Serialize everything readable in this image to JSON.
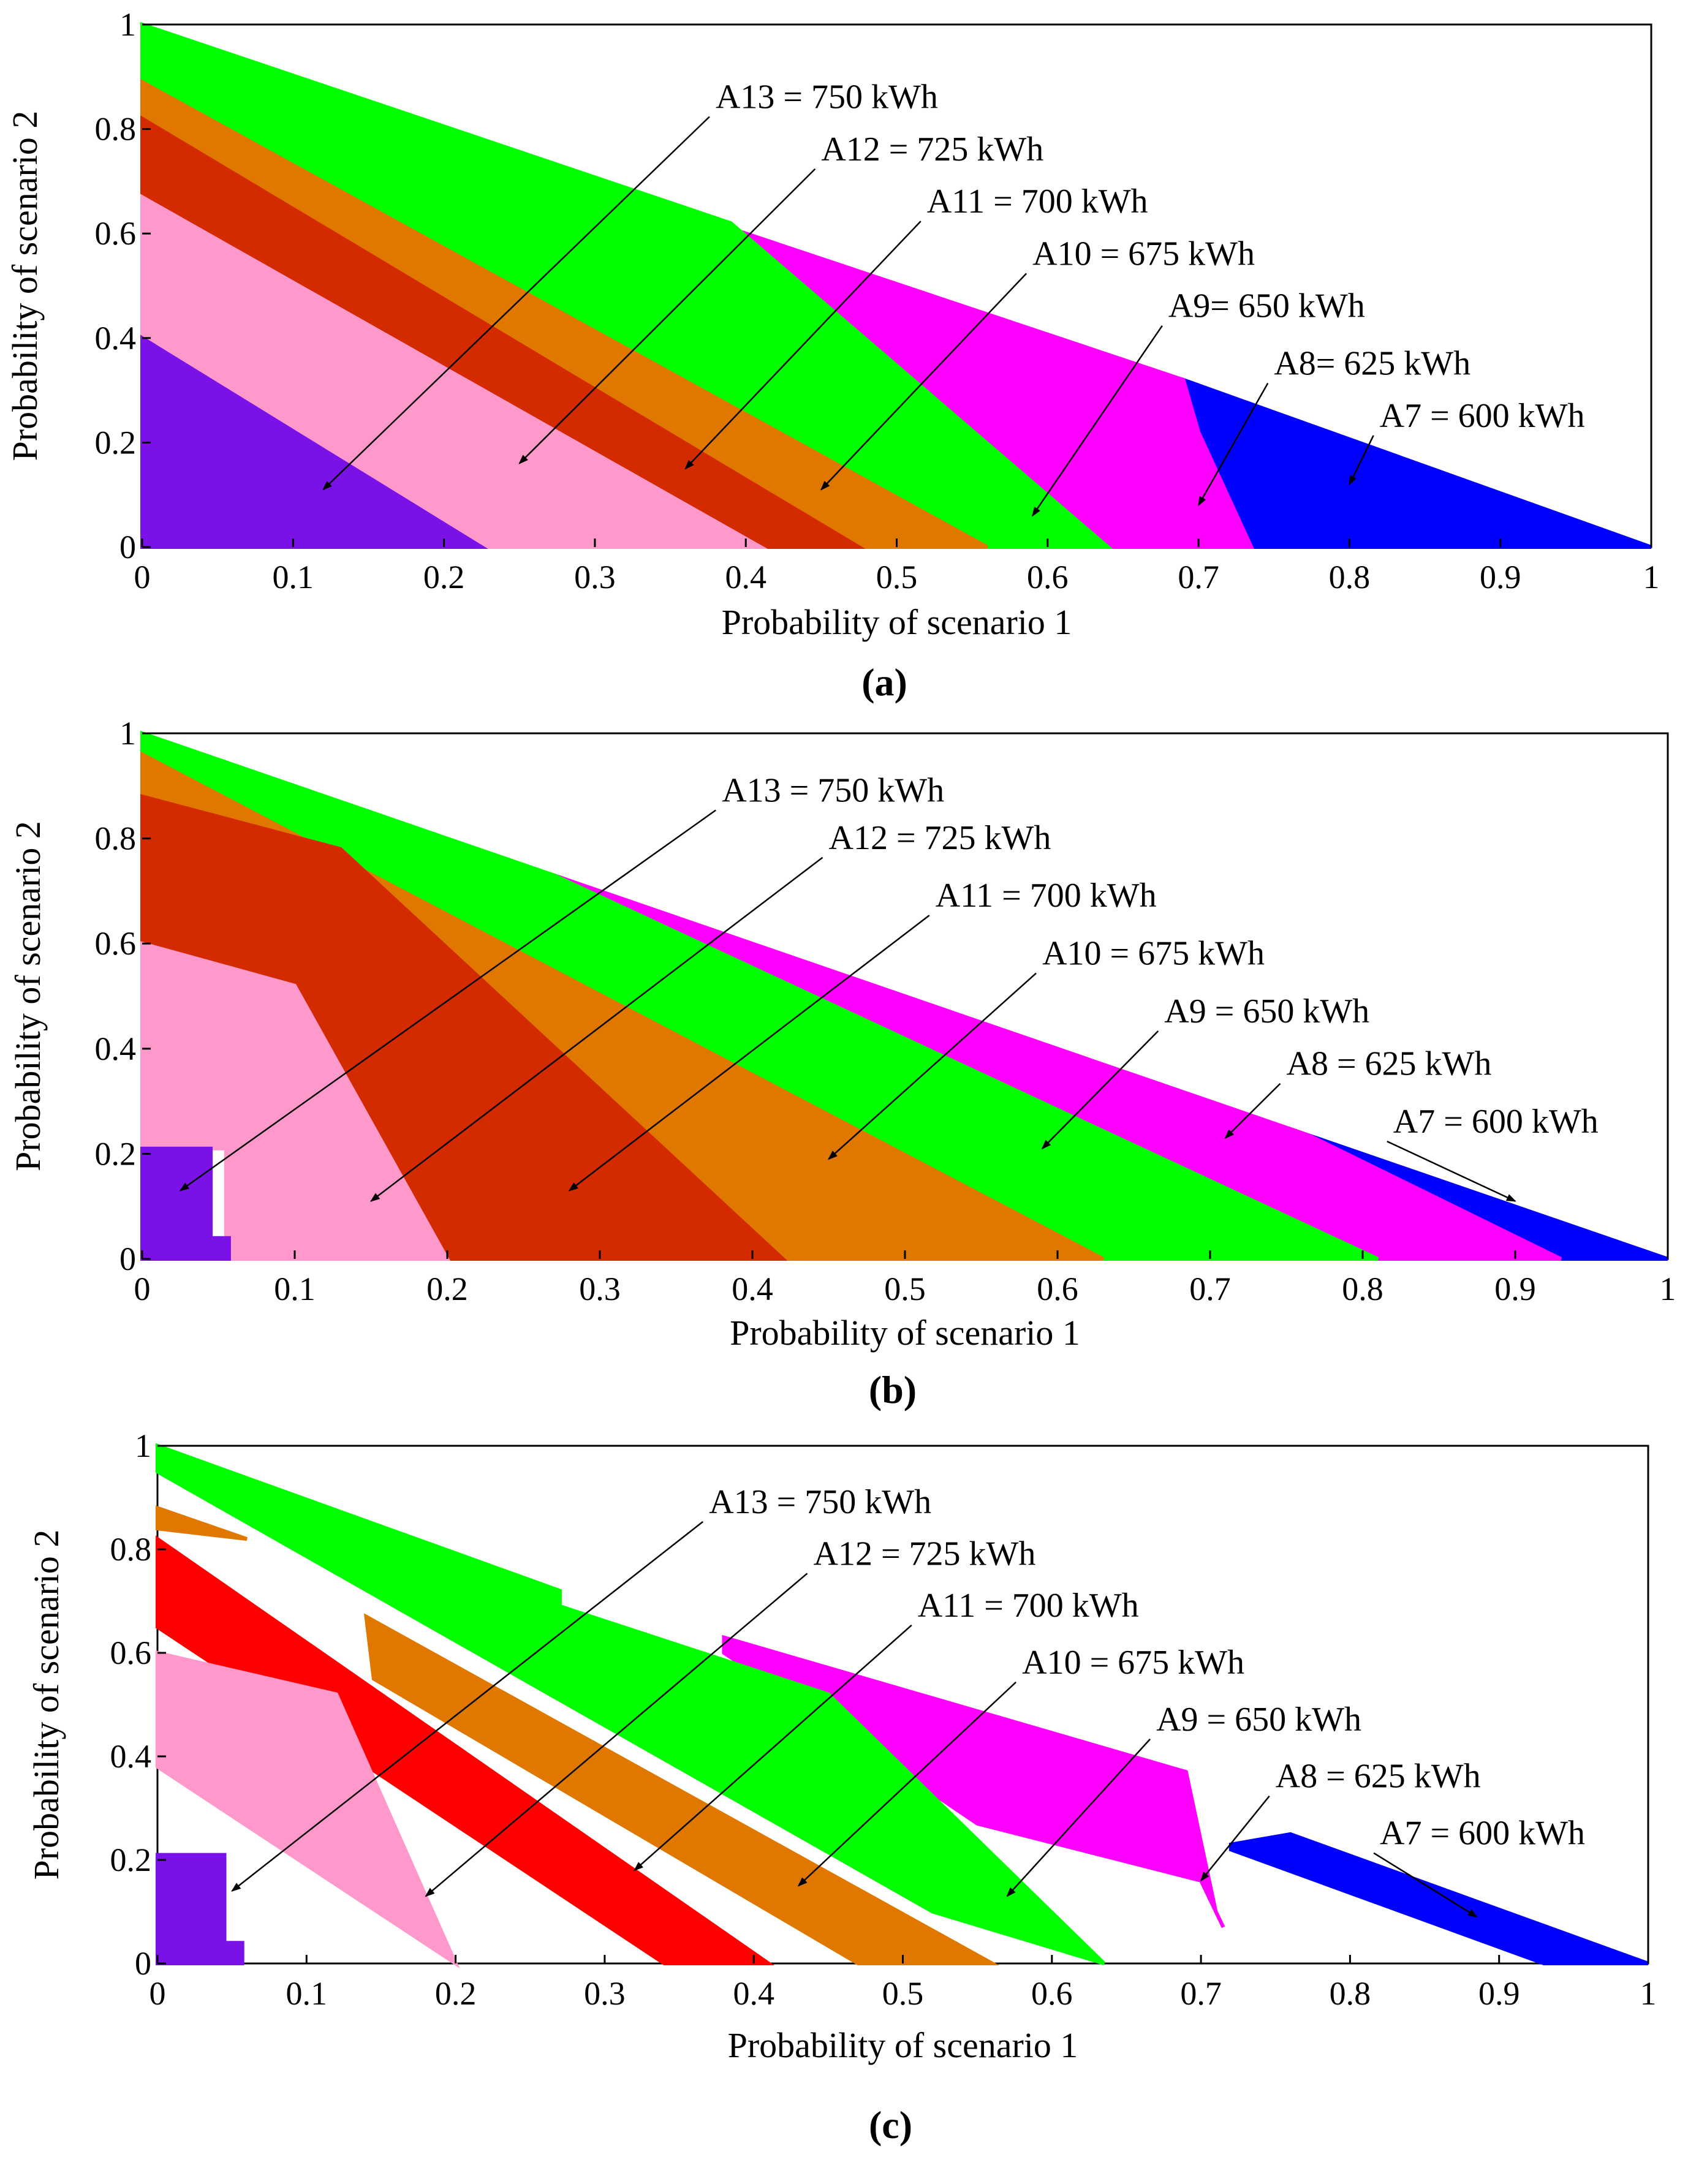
{
  "figure": {
    "panels": [
      "a",
      "b",
      "c"
    ]
  },
  "chart_data": [
    {
      "panel_label": "(a)",
      "type": "area",
      "xlabel": "Probability of scenario 1",
      "ylabel": "Probability of scenario 2",
      "xlim": [
        0,
        1
      ],
      "ylim": [
        0,
        1
      ],
      "xticks": [
        "0",
        "0.1",
        "0.2",
        "0.3",
        "0.4",
        "0.5",
        "0.6",
        "0.7",
        "0.8",
        "0.9",
        "1"
      ],
      "yticks": [
        "0",
        "0.2",
        "0.4",
        "0.6",
        "0.8",
        "1"
      ],
      "colors": {
        "A7": "#0000ff",
        "A8": "#ff00ff",
        "A9": "#00ff00",
        "A10": "#e07800",
        "A11": "#d42a00",
        "A12": "#ff99cc",
        "A13": "#7a12e8"
      },
      "regions": [
        {
          "name": "A7",
          "points": [
            [
              0.69,
              0.32
            ],
            [
              1.0,
              0.0
            ],
            [
              0.735,
              0.0
            ],
            [
              0.7,
              0.22
            ]
          ]
        },
        {
          "name": "A8",
          "points": [
            [
              0.39,
              0.61
            ],
            [
              0.69,
              0.32
            ],
            [
              0.7,
              0.22
            ],
            [
              0.735,
              0.0
            ],
            [
              0.64,
              0.0
            ]
          ]
        },
        {
          "name": "A9",
          "points": [
            [
              0.0,
              1.0
            ],
            [
              0.39,
              0.62
            ],
            [
              0.64,
              0.0
            ],
            [
              0.56,
              0.0
            ],
            [
              0.0,
              0.88
            ]
          ]
        },
        {
          "name": "A10",
          "points": [
            [
              0.0,
              0.89
            ],
            [
              0.56,
              0.0
            ],
            [
              0.475,
              0.0
            ],
            [
              0.0,
              0.82
            ]
          ]
        },
        {
          "name": "A11",
          "points": [
            [
              0.0,
              0.82
            ],
            [
              0.475,
              0.0
            ],
            [
              0.41,
              0.0
            ],
            [
              0.0,
              0.67
            ]
          ]
        },
        {
          "name": "A12",
          "points": [
            [
              0.0,
              0.67
            ],
            [
              0.41,
              0.0
            ],
            [
              0.225,
              0.0
            ],
            [
              0.0,
              0.4
            ]
          ]
        },
        {
          "name": "A13",
          "points": [
            [
              0.0,
              0.4
            ],
            [
              0.225,
              0.0
            ],
            [
              0.0,
              0.0
            ]
          ]
        }
      ],
      "annotations": [
        {
          "text": "A13 = 750 kWh",
          "label_at": [
            0.38,
            0.84
          ],
          "arrow_to": [
            0.12,
            0.11
          ]
        },
        {
          "text": "A12 = 725 kWh",
          "label_at": [
            0.45,
            0.74
          ],
          "arrow_to": [
            0.25,
            0.16
          ]
        },
        {
          "text": "A11 = 700 kWh",
          "label_at": [
            0.52,
            0.64
          ],
          "arrow_to": [
            0.36,
            0.15
          ]
        },
        {
          "text": "A10 = 675 kWh",
          "label_at": [
            0.59,
            0.54
          ],
          "arrow_to": [
            0.45,
            0.11
          ]
        },
        {
          "text": "A9= 650 kWh",
          "label_at": [
            0.68,
            0.44
          ],
          "arrow_to": [
            0.59,
            0.06
          ]
        },
        {
          "text": "A8= 625 kWh",
          "label_at": [
            0.75,
            0.33
          ],
          "arrow_to": [
            0.7,
            0.08
          ]
        },
        {
          "text": "A7 = 600 kWh",
          "label_at": [
            0.82,
            0.23
          ],
          "arrow_to": [
            0.8,
            0.12
          ]
        }
      ]
    },
    {
      "panel_label": "(b)",
      "type": "area",
      "xlabel": "Probability of scenario 1",
      "ylabel": "Probability of scenario 2",
      "xlim": [
        0,
        1
      ],
      "ylim": [
        0,
        1
      ],
      "xticks": [
        "0",
        "0.1",
        "0.2",
        "0.3",
        "0.4",
        "0.5",
        "0.6",
        "0.7",
        "0.8",
        "0.9",
        "1"
      ],
      "yticks": [
        "0",
        "0.2",
        "0.4",
        "0.6",
        "0.8",
        "1"
      ],
      "colors": {
        "A7": "#0000ff",
        "A8": "#ff00ff",
        "A9": "#00ff00",
        "A10": "#e07800",
        "A11": "#d42a00",
        "A12": "#ff99cc",
        "A13": "#7a12e8"
      },
      "regions": [
        {
          "name": "A7",
          "points": [
            [
              0.765,
              0.235
            ],
            [
              1.0,
              0.0
            ],
            [
              0.93,
              0.0
            ],
            [
              0.76,
              0.22
            ]
          ]
        },
        {
          "name": "A8",
          "points": [
            [
              0.27,
              0.73
            ],
            [
              0.765,
              0.235
            ],
            [
              0.93,
              0.0
            ],
            [
              0.81,
              0.0
            ],
            [
              0.29,
              0.7
            ]
          ]
        },
        {
          "name": "A9",
          "points": [
            [
              0.0,
              1.0
            ],
            [
              0.27,
              0.73
            ],
            [
              0.81,
              0.0
            ],
            [
              0.63,
              0.0
            ],
            [
              0.0,
              0.96
            ]
          ]
        },
        {
          "name": "A10",
          "points": [
            [
              0.0,
              0.96
            ],
            [
              0.63,
              0.0
            ],
            [
              0.42,
              0.0
            ],
            [
              0.13,
              0.78
            ],
            [
              0.0,
              0.88
            ]
          ]
        },
        {
          "name": "A11",
          "points": [
            [
              0.0,
              0.88
            ],
            [
              0.13,
              0.78
            ],
            [
              0.42,
              0.0
            ],
            [
              0.2,
              0.0
            ],
            [
              0.1,
              0.52
            ],
            [
              0.0,
              0.6
            ]
          ]
        },
        {
          "name": "A12",
          "points": [
            [
              0.0,
              0.6
            ],
            [
              0.1,
              0.52
            ],
            [
              0.2,
              0.0
            ],
            [
              0.055,
              0.0
            ],
            [
              0.055,
              0.21
            ],
            [
              0.0,
              0.21
            ]
          ]
        },
        {
          "name": "A13",
          "points": [
            [
              0.0,
              0.21
            ],
            [
              0.045,
              0.21
            ],
            [
              0.045,
              0.04
            ],
            [
              0.057,
              0.04
            ],
            [
              0.057,
              0.0
            ],
            [
              0.0,
              0.0
            ]
          ]
        }
      ],
      "annotations": [
        {
          "text": "A13 = 750 kWh",
          "label_at": [
            0.38,
            0.87
          ],
          "arrow_to": [
            0.025,
            0.13
          ]
        },
        {
          "text": "A12 = 725 kWh",
          "label_at": [
            0.45,
            0.78
          ],
          "arrow_to": [
            0.15,
            0.11
          ]
        },
        {
          "text": "A11 = 700 kWh",
          "label_at": [
            0.52,
            0.67
          ],
          "arrow_to": [
            0.28,
            0.13
          ]
        },
        {
          "text": "A10 = 675 kWh",
          "label_at": [
            0.59,
            0.56
          ],
          "arrow_to": [
            0.45,
            0.19
          ]
        },
        {
          "text": "A9 = 650 kWh",
          "label_at": [
            0.67,
            0.45
          ],
          "arrow_to": [
            0.59,
            0.21
          ]
        },
        {
          "text": "A8 = 625 kWh",
          "label_at": [
            0.75,
            0.35
          ],
          "arrow_to": [
            0.71,
            0.23
          ]
        },
        {
          "text": "A7 = 600 kWh",
          "label_at": [
            0.82,
            0.24
          ],
          "arrow_to": [
            0.9,
            0.11
          ]
        }
      ]
    },
    {
      "panel_label": "(c)",
      "type": "area",
      "xlabel": "Probability of scenario 1",
      "ylabel": "Probability of scenario 2",
      "xlim": [
        0,
        1
      ],
      "ylim": [
        0,
        1
      ],
      "xticks": [
        "0",
        "0.1",
        "0.2",
        "0.3",
        "0.4",
        "0.5",
        "0.6",
        "0.7",
        "0.8",
        "0.9",
        "1"
      ],
      "yticks": [
        "0",
        "0.2",
        "0.4",
        "0.6",
        "0.8",
        "1"
      ],
      "colors": {
        "A7": "#0000ff",
        "A8": "#ff00ff",
        "A9": "#00ff00",
        "A10": "#e07800",
        "A11": "#ff0000",
        "A12": "#ff99cc",
        "A13": "#7a12e8"
      },
      "regions": [
        {
          "name": "A7",
          "points": [
            [
              0.72,
              0.23
            ],
            [
              0.76,
              0.25
            ],
            [
              1.0,
              0.0
            ],
            [
              0.93,
              0.0
            ],
            [
              0.72,
              0.22
            ]
          ]
        },
        {
          "name": "A8",
          "points": [
            [
              0.38,
              0.63
            ],
            [
              0.69,
              0.37
            ],
            [
              0.71,
              0.1
            ],
            [
              0.715,
              0.07
            ],
            [
              0.7,
              0.16
            ],
            [
              0.55,
              0.27
            ],
            [
              0.38,
              0.6
            ]
          ]
        },
        {
          "name": "A9",
          "points": [
            [
              0.0,
              1.0
            ],
            [
              0.27,
              0.72
            ],
            [
              0.27,
              0.69
            ],
            [
              0.45,
              0.52
            ],
            [
              0.635,
              0.0
            ],
            [
              0.52,
              0.1
            ],
            [
              0.0,
              0.95
            ]
          ]
        },
        {
          "name": "A10",
          "points": [
            [
              0.0,
              0.88
            ],
            [
              0.06,
              0.82
            ],
            [
              0.0,
              0.84
            ]
          ]
        },
        {
          "name": "A10",
          "points": [
            [
              0.14,
              0.67
            ],
            [
              0.56,
              0.0
            ],
            [
              0.47,
              0.0
            ],
            [
              0.145,
              0.55
            ]
          ]
        },
        {
          "name": "A11",
          "points": [
            [
              0.0,
              0.82
            ],
            [
              0.41,
              0.0
            ],
            [
              0.34,
              0.0
            ],
            [
              0.0,
              0.65
            ]
          ]
        },
        {
          "name": "A12",
          "points": [
            [
              0.0,
              0.6
            ],
            [
              0.12,
              0.52
            ],
            [
              0.2,
              0.0
            ],
            [
              0.0,
              0.38
            ]
          ]
        },
        {
          "name": "A13",
          "points": [
            [
              0.0,
              0.21
            ],
            [
              0.045,
              0.21
            ],
            [
              0.045,
              0.04
            ],
            [
              0.057,
              0.04
            ],
            [
              0.057,
              0.0
            ],
            [
              0.0,
              0.0
            ]
          ]
        }
      ],
      "annotations": [
        {
          "text": "A13 = 750 kWh",
          "label_at": [
            0.37,
            0.87
          ],
          "arrow_to": [
            0.05,
            0.14
          ]
        },
        {
          "text": "A12 = 725 kWh",
          "label_at": [
            0.44,
            0.77
          ],
          "arrow_to": [
            0.18,
            0.13
          ]
        },
        {
          "text": "A11 = 700 kWh",
          "label_at": [
            0.51,
            0.67
          ],
          "arrow_to": [
            0.32,
            0.18
          ]
        },
        {
          "text": "A10 = 675 kWh",
          "label_at": [
            0.58,
            0.56
          ],
          "arrow_to": [
            0.43,
            0.15
          ]
        },
        {
          "text": "A9 = 650 kWh",
          "label_at": [
            0.67,
            0.45
          ],
          "arrow_to": [
            0.57,
            0.13
          ]
        },
        {
          "text": "A8 = 625 kWh",
          "label_at": [
            0.75,
            0.34
          ],
          "arrow_to": [
            0.7,
            0.16
          ]
        },
        {
          "text": "A7 = 600 kWh",
          "label_at": [
            0.82,
            0.23
          ],
          "arrow_to": [
            0.885,
            0.09
          ]
        }
      ]
    }
  ]
}
